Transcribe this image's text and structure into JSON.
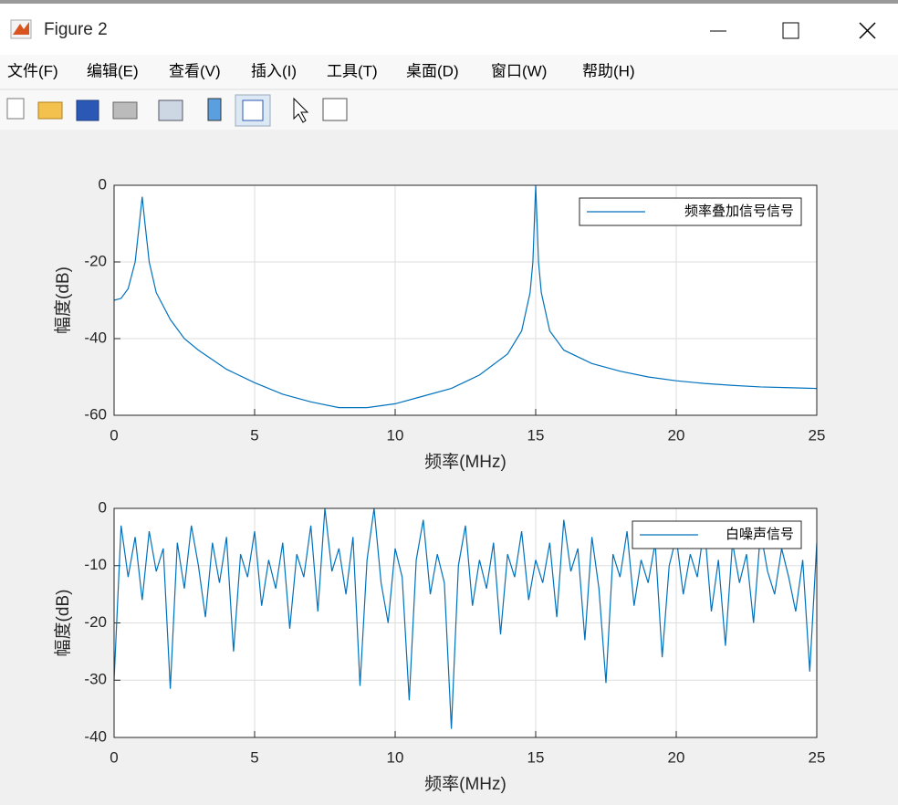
{
  "window": {
    "title": "Figure 2",
    "menu": [
      "文件(F)",
      "编辑(E)",
      "查看(V)",
      "插入(I)",
      "工具(T)",
      "桌面(D)",
      "窗口(W)",
      "帮助(H)"
    ]
  },
  "chart_data": [
    {
      "type": "line",
      "xlabel": "频率(MHz)",
      "ylabel": "幅度(dB)",
      "x": [
        0,
        0.25,
        0.5,
        0.75,
        0.9,
        1,
        1.1,
        1.25,
        1.5,
        2,
        2.5,
        3,
        4,
        5,
        6,
        7,
        8,
        9,
        10,
        11,
        12,
        13,
        14,
        14.5,
        14.8,
        14.9,
        15,
        15.1,
        15.2,
        15.5,
        16,
        17,
        18,
        19,
        20,
        21,
        22,
        23,
        24,
        25
      ],
      "series": [
        {
          "name": "频率叠加信号信号",
          "color": "#0072bd",
          "values": [
            -30,
            -29.5,
            -27,
            -20,
            -10,
            -3,
            -10,
            -20,
            -28,
            -35,
            -40,
            -43,
            -48,
            -51.5,
            -54.5,
            -56.5,
            -58,
            -58,
            -57,
            -55,
            -53,
            -49.5,
            -44,
            -38,
            -28,
            -20,
            0,
            -20,
            -28,
            -38,
            -43,
            -46.5,
            -48.5,
            -50,
            -51,
            -51.7,
            -52.2,
            -52.6,
            -52.8,
            -53
          ]
        }
      ],
      "xlim": [
        0,
        25
      ],
      "xticks": [
        0,
        5,
        10,
        15,
        20,
        25
      ],
      "ylim": [
        -60,
        0
      ],
      "yticks": [
        -60,
        -40,
        -20,
        0
      ],
      "grid": true,
      "legend": "upper right"
    },
    {
      "type": "line",
      "xlabel": "频率(MHz)",
      "ylabel": "幅度(dB)",
      "x": [
        0,
        0.25,
        0.5,
        0.75,
        1,
        1.25,
        1.5,
        1.75,
        2,
        2.25,
        2.5,
        2.75,
        3,
        3.25,
        3.5,
        3.75,
        4,
        4.25,
        4.5,
        4.75,
        5,
        5.25,
        5.5,
        5.75,
        6,
        6.25,
        6.5,
        6.75,
        7,
        7.25,
        7.5,
        7.75,
        8,
        8.25,
        8.5,
        8.75,
        9,
        9.25,
        9.5,
        9.75,
        10,
        10.25,
        10.5,
        10.75,
        11,
        11.25,
        11.5,
        11.75,
        12,
        12.25,
        12.5,
        12.75,
        13,
        13.25,
        13.5,
        13.75,
        14,
        14.25,
        14.5,
        14.75,
        15,
        15.25,
        15.5,
        15.75,
        16,
        16.25,
        16.5,
        16.75,
        17,
        17.25,
        17.5,
        17.75,
        18,
        18.25,
        18.5,
        18.75,
        19,
        19.25,
        19.5,
        19.75,
        20,
        20.25,
        20.5,
        20.75,
        21,
        21.25,
        21.5,
        21.75,
        22,
        22.25,
        22.5,
        22.75,
        23,
        23.25,
        23.5,
        23.75,
        24,
        24.25,
        24.5,
        24.75,
        25
      ],
      "series": [
        {
          "name": "白噪声信号",
          "color": "#0072bd",
          "values": [
            -30,
            -3,
            -12,
            -5,
            -16,
            -4,
            -11,
            -7,
            -31.5,
            -6,
            -14,
            -3,
            -10,
            -19,
            -6,
            -13,
            -5,
            -25,
            -8,
            -12,
            -4,
            -17,
            -9,
            -14,
            -6,
            -21,
            -8,
            -12,
            -3,
            -18,
            0,
            -11,
            -7,
            -15,
            -5,
            -31,
            -9,
            0,
            -13,
            -20,
            -7,
            -12,
            -33.5,
            -9,
            -2,
            -15,
            -8,
            -13,
            -38.5,
            -10,
            -3,
            -17,
            -9,
            -14,
            -6,
            -22,
            -8,
            -12,
            -4,
            -16,
            -9,
            -13,
            -6,
            -19,
            -2,
            -11,
            -7,
            -23,
            -5,
            -14,
            -30.5,
            -8,
            -12,
            -4,
            -17,
            -9,
            -13,
            -6,
            -26,
            -10,
            -5,
            -15,
            -8,
            -12,
            -3,
            -18,
            -9,
            -24,
            -6,
            -13,
            -8,
            -20,
            -4,
            -11,
            -15,
            -7,
            -12,
            -18,
            -9,
            -28.5,
            -6
          ]
        }
      ],
      "xlim": [
        0,
        25
      ],
      "xticks": [
        0,
        5,
        10,
        15,
        20,
        25
      ],
      "ylim": [
        -40,
        0
      ],
      "yticks": [
        -40,
        -30,
        -20,
        -10,
        0
      ],
      "grid": true,
      "legend": "upper right"
    }
  ]
}
